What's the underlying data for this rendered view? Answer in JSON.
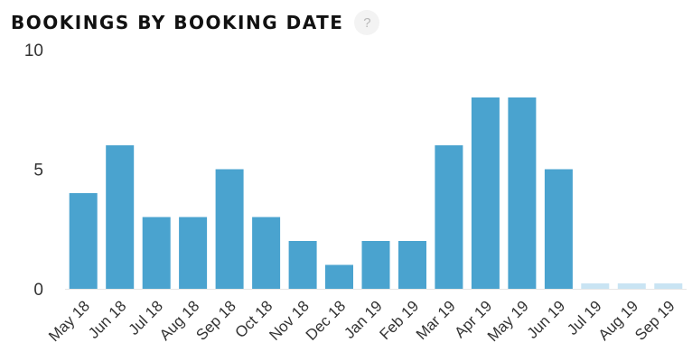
{
  "header": {
    "title": "BOOKINGS BY BOOKING DATE",
    "help_glyph": "?",
    "help_icon": "help-circle-icon"
  },
  "colors": {
    "bar": "#4aa3cf",
    "bar_future": "#c9e4f3",
    "axis": "#e6e6e6"
  },
  "chart_data": {
    "type": "bar",
    "title": "BOOKINGS BY BOOKING DATE",
    "xlabel": "",
    "ylabel": "",
    "ylim": [
      0,
      10
    ],
    "yticks": [
      0,
      5,
      10
    ],
    "grid": false,
    "categories": [
      "May 18",
      "Jun 18",
      "Jul 18",
      "Aug 18",
      "Sep 18",
      "Oct 18",
      "Nov 18",
      "Dec 18",
      "Jan 19",
      "Feb 19",
      "Mar 19",
      "Apr 19",
      "May 19",
      "Jun 19",
      "Jul 19",
      "Aug 19",
      "Sep 19"
    ],
    "values": [
      4,
      6,
      3,
      3,
      5,
      3,
      2,
      1,
      2,
      2,
      6,
      8,
      8,
      5,
      0,
      0,
      0
    ],
    "future_categories": [
      "Jul 19",
      "Aug 19",
      "Sep 19"
    ]
  }
}
